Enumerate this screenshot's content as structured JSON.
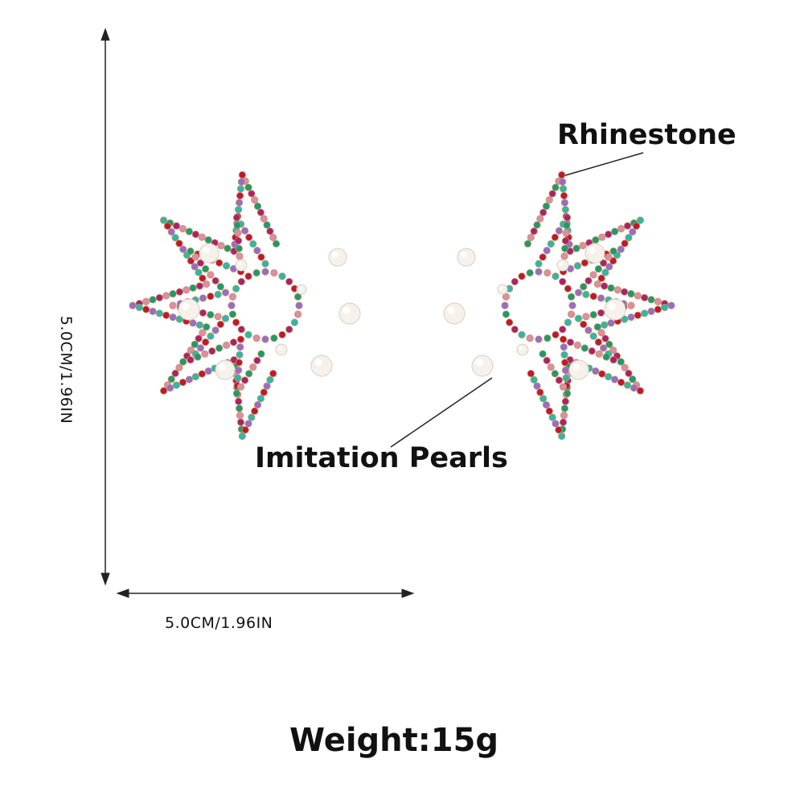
{
  "dimensions": {
    "height_label": "5.0CM/1.96IN",
    "width_label": "5.0CM/1.96IN"
  },
  "callouts": {
    "rhinestone": "Rhinestone",
    "pearls": "Imitation Pearls"
  },
  "weight": "Weight:15g",
  "product": {
    "name": "star-earrings",
    "stone_colors": [
      "#c3172e",
      "#1f9a6a",
      "#9a6bc7",
      "#e08ca2",
      "#2fb7a8",
      "#b0206a"
    ],
    "pearl_color": "#f6f1ea",
    "setting_color": "#b89a6a"
  }
}
